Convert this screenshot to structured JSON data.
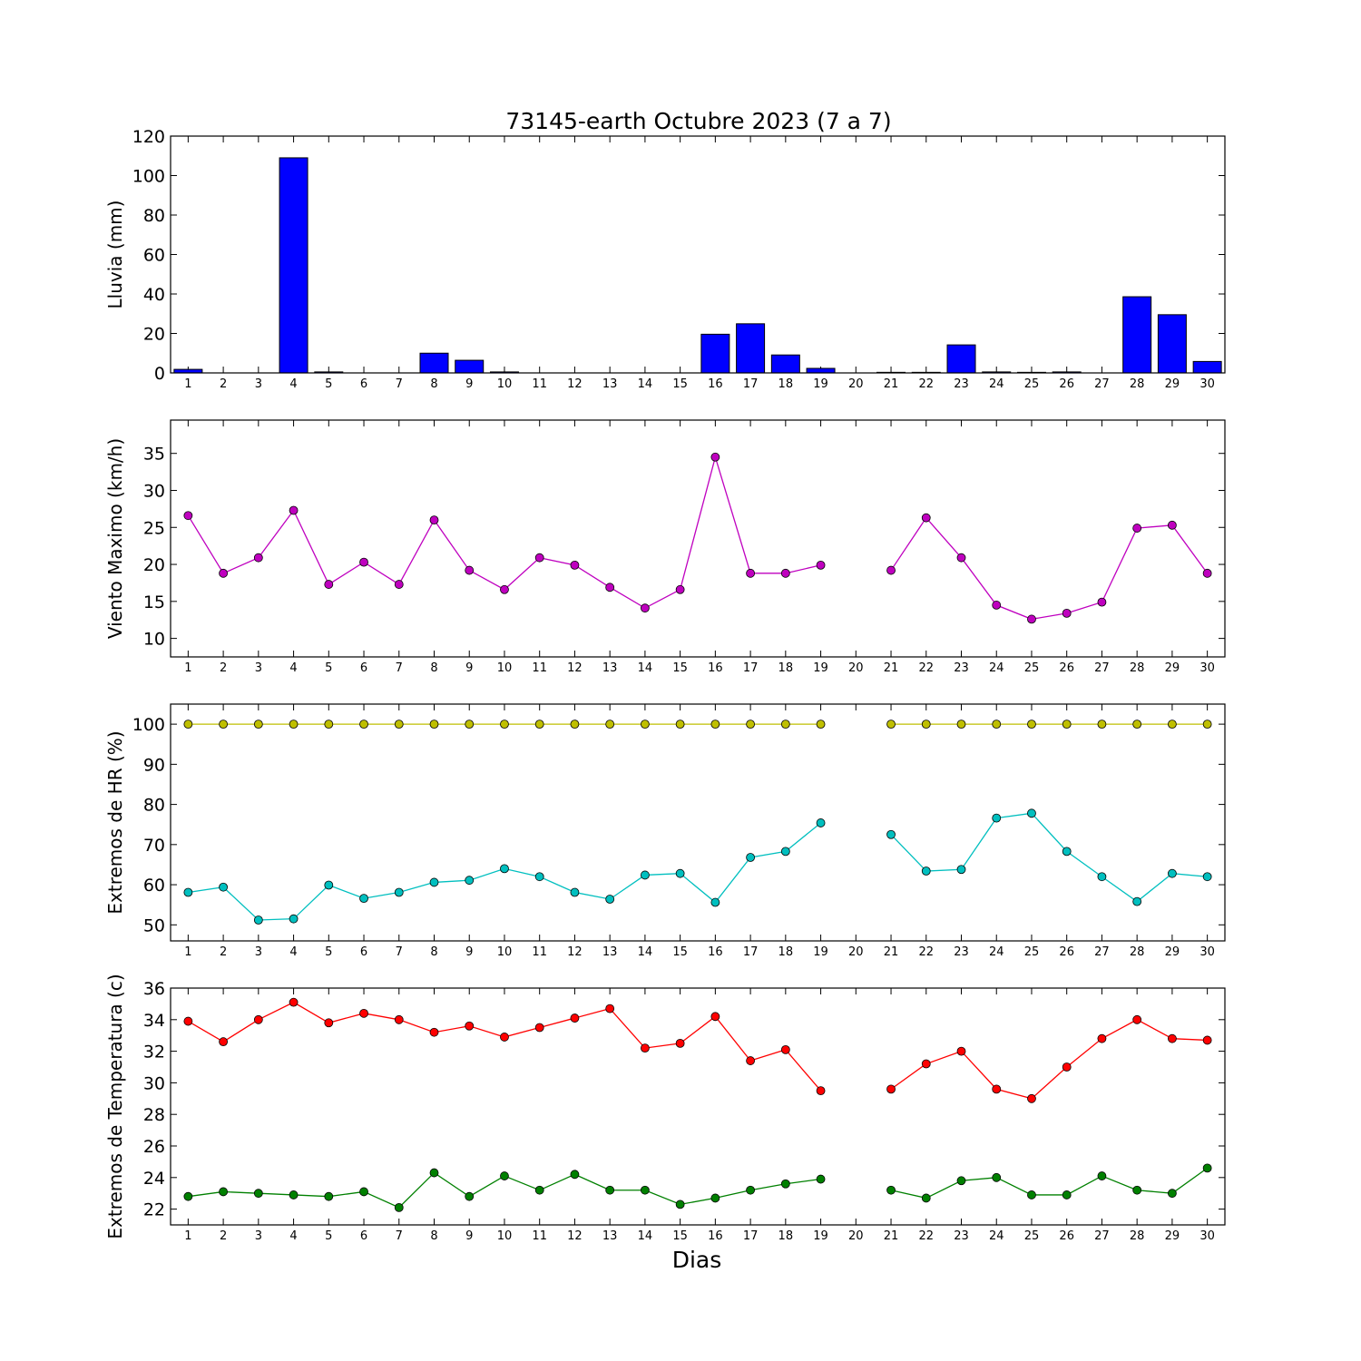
{
  "title": "73145-earth Octubre 2023  (7 a 7)",
  "xlabel": "Dias",
  "chart_data": [
    {
      "type": "bar",
      "ylabel": "Lluvia (mm)",
      "ylim": [
        0,
        120
      ],
      "yticks": [
        0,
        20,
        40,
        60,
        80,
        100,
        120
      ],
      "x": [
        1,
        2,
        3,
        4,
        5,
        6,
        7,
        8,
        9,
        10,
        11,
        12,
        13,
        14,
        15,
        16,
        17,
        18,
        19,
        20,
        21,
        22,
        23,
        24,
        25,
        26,
        27,
        28,
        29,
        30
      ],
      "series": [
        {
          "color": "#0000ff",
          "values": [
            1.8,
            0,
            0,
            109,
            0.5,
            0,
            0,
            10,
            6.4,
            0.5,
            0,
            0,
            0,
            0,
            0,
            19.6,
            24.9,
            9.1,
            2.3,
            0,
            0.3,
            0.3,
            14.2,
            0.5,
            0.3,
            0.5,
            0,
            38.6,
            29.5,
            5.8
          ]
        }
      ]
    },
    {
      "type": "line",
      "ylabel": "Viento Maximo (km/h)",
      "ylim": [
        7.5,
        39.5
      ],
      "yticks": [
        10,
        15,
        20,
        25,
        30,
        35
      ],
      "x": [
        1,
        2,
        3,
        4,
        5,
        6,
        7,
        8,
        9,
        10,
        11,
        12,
        13,
        14,
        15,
        16,
        17,
        18,
        19,
        20,
        21,
        22,
        23,
        24,
        25,
        26,
        27,
        28,
        29,
        30
      ],
      "series": [
        {
          "color": "#bf00bf",
          "values": [
            26.6,
            18.8,
            20.9,
            27.3,
            17.3,
            20.3,
            17.3,
            26.0,
            19.2,
            16.6,
            20.9,
            19.9,
            16.9,
            14.1,
            16.6,
            34.5,
            18.8,
            18.8,
            19.9,
            null,
            19.2,
            26.3,
            20.9,
            14.5,
            12.6,
            13.4,
            14.9,
            24.9,
            25.3,
            18.8
          ]
        }
      ]
    },
    {
      "type": "line",
      "ylabel": "Extremos de HR (%)",
      "ylim": [
        46,
        105
      ],
      "yticks": [
        50,
        60,
        70,
        80,
        90,
        100
      ],
      "x": [
        1,
        2,
        3,
        4,
        5,
        6,
        7,
        8,
        9,
        10,
        11,
        12,
        13,
        14,
        15,
        16,
        17,
        18,
        19,
        20,
        21,
        22,
        23,
        24,
        25,
        26,
        27,
        28,
        29,
        30
      ],
      "series": [
        {
          "color": "#bfbf00",
          "values": [
            100,
            100,
            100,
            100,
            100,
            100,
            100,
            100,
            100,
            100,
            100,
            100,
            100,
            100,
            100,
            100,
            100,
            100,
            100,
            null,
            100,
            100,
            100,
            100,
            100,
            100,
            100,
            100,
            100,
            100
          ]
        },
        {
          "color": "#00bfbf",
          "values": [
            58.1,
            59.4,
            51.2,
            51.5,
            59.9,
            56.6,
            58.1,
            60.6,
            61.1,
            64.0,
            62.0,
            58.1,
            56.4,
            62.4,
            62.8,
            55.6,
            66.8,
            68.3,
            75.4,
            null,
            72.5,
            63.4,
            63.8,
            76.6,
            77.8,
            68.3,
            62.0,
            55.8,
            62.8,
            62.0
          ]
        }
      ]
    },
    {
      "type": "line",
      "ylabel": "Extremos de Temperatura (c)",
      "ylim": [
        21,
        36
      ],
      "yticks": [
        22,
        24,
        26,
        28,
        30,
        32,
        34,
        36
      ],
      "x": [
        1,
        2,
        3,
        4,
        5,
        6,
        7,
        8,
        9,
        10,
        11,
        12,
        13,
        14,
        15,
        16,
        17,
        18,
        19,
        20,
        21,
        22,
        23,
        24,
        25,
        26,
        27,
        28,
        29,
        30
      ],
      "series": [
        {
          "color": "#ff0000",
          "values": [
            33.9,
            32.6,
            34.0,
            35.1,
            33.8,
            34.4,
            34.0,
            33.2,
            33.6,
            32.9,
            33.5,
            34.1,
            34.7,
            32.2,
            32.5,
            34.2,
            31.4,
            32.1,
            29.5,
            null,
            29.6,
            31.2,
            32.0,
            29.6,
            29.0,
            31.0,
            32.8,
            34.0,
            32.8,
            32.7
          ]
        },
        {
          "color": "#008000",
          "values": [
            22.8,
            23.1,
            23.0,
            22.9,
            22.8,
            23.1,
            22.1,
            24.3,
            22.8,
            24.1,
            23.2,
            24.2,
            23.2,
            23.2,
            22.3,
            22.7,
            23.2,
            23.6,
            23.9,
            null,
            23.2,
            22.7,
            23.8,
            24.0,
            22.9,
            22.9,
            24.1,
            23.2,
            23.0,
            24.6
          ]
        }
      ]
    }
  ]
}
